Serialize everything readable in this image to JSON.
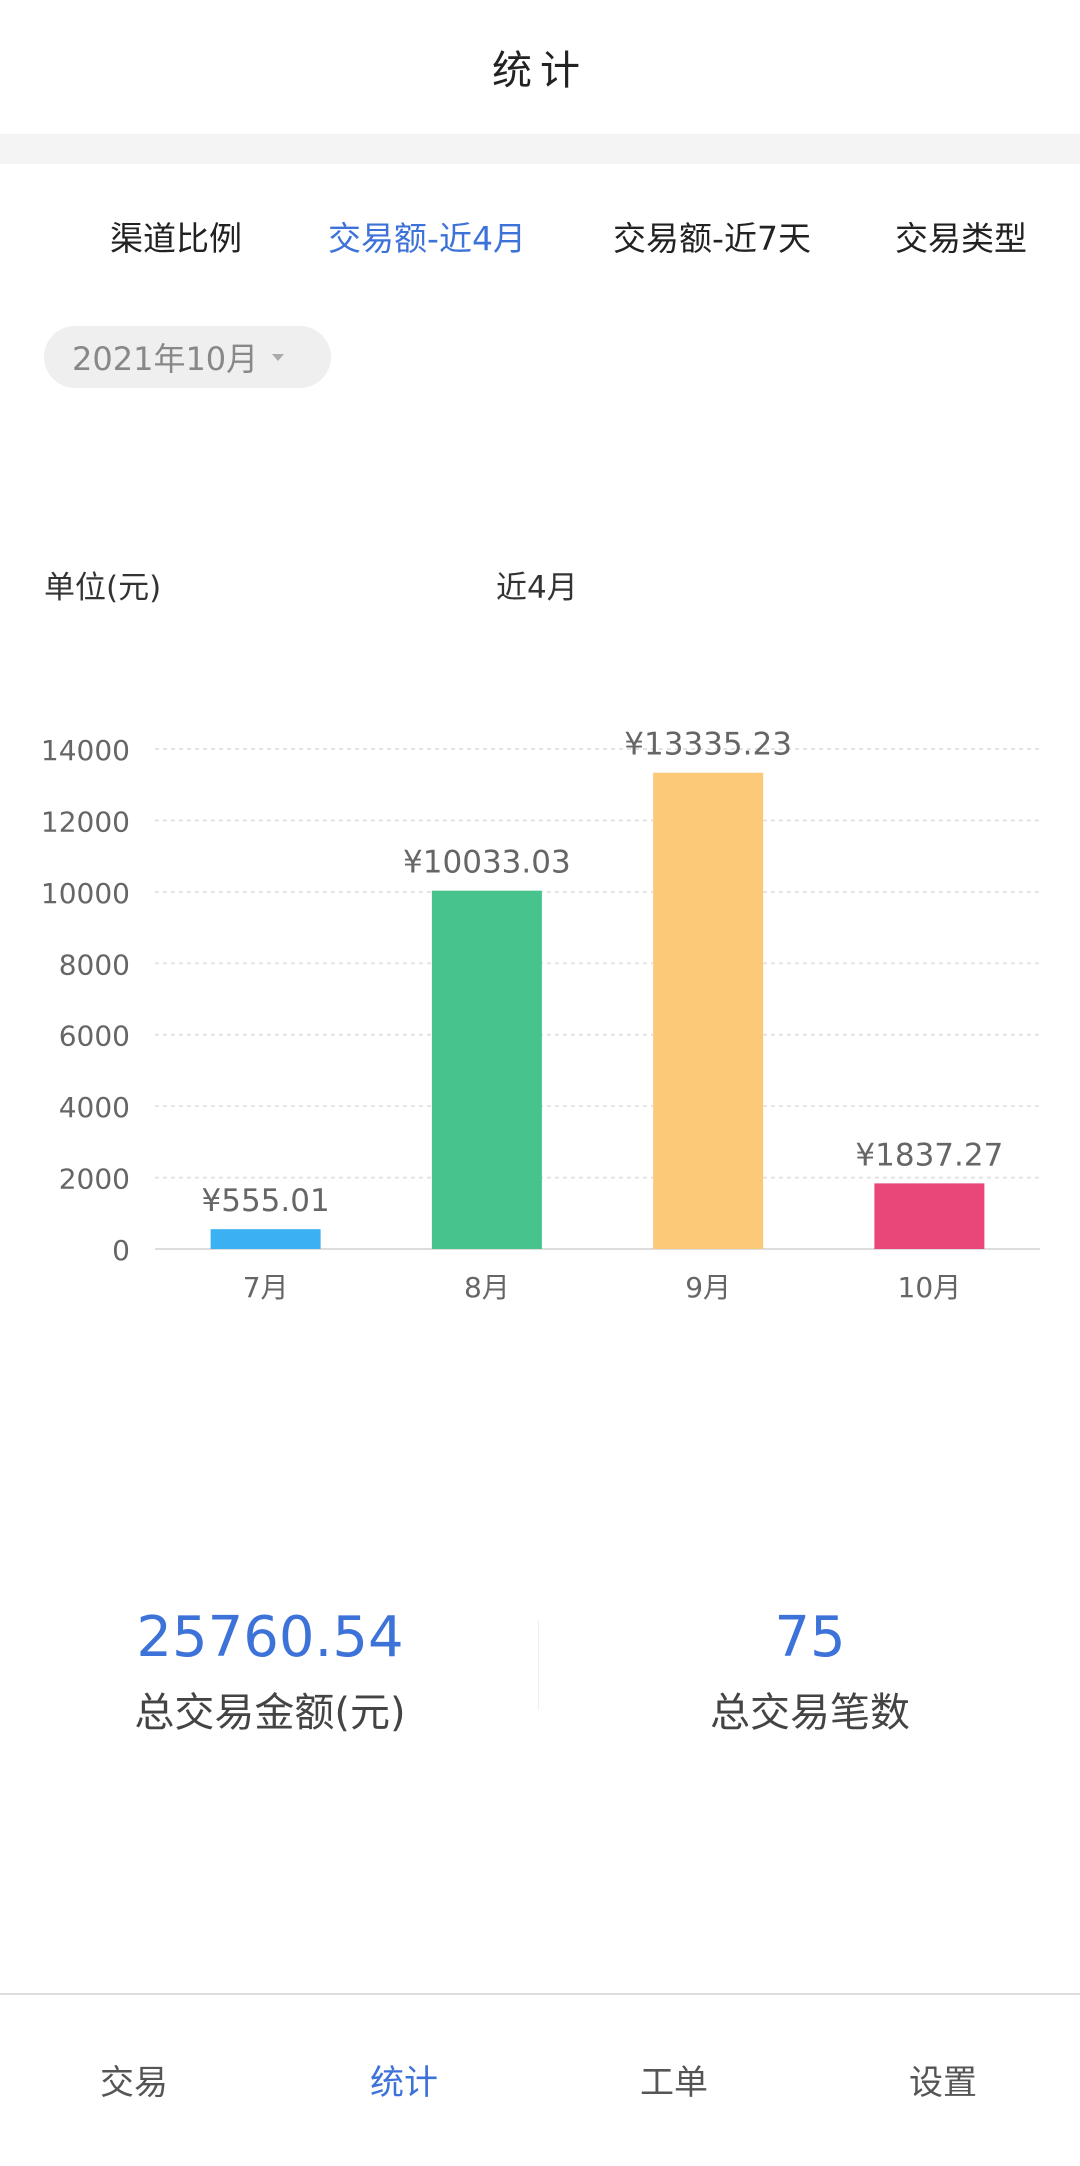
{
  "header": {
    "title": "统计"
  },
  "tabs": [
    {
      "label": "渠道比例"
    },
    {
      "label": "交易额-近4月",
      "active": true
    },
    {
      "label": "交易额-近7天"
    },
    {
      "label": "交易类型"
    }
  ],
  "date_select": {
    "value": "2021年10月"
  },
  "chart_header": {
    "unit": "单位(元)",
    "title": "近4月"
  },
  "chart_data": {
    "type": "bar",
    "title": "近4月",
    "ylabel": "单位(元)",
    "categories": [
      "7月",
      "8月",
      "9月",
      "10月"
    ],
    "values": [
      555.01,
      10033.03,
      13335.23,
      1837.27
    ],
    "data_labels": [
      "¥555.01",
      "¥10033.03",
      "¥13335.23",
      "¥1837.27"
    ],
    "colors": [
      "#3bb1f3",
      "#47c48d",
      "#fbc977",
      "#e9467a"
    ],
    "ylim": [
      0,
      14000
    ],
    "yticks": [
      "0",
      "2000",
      "4000",
      "6000",
      "8000",
      "10000",
      "12000",
      "14000"
    ],
    "grid": true
  },
  "summary": {
    "total_amount": "25760.54",
    "total_amount_label": "总交易金额(元)",
    "total_count": "75",
    "total_count_label": "总交易笔数"
  },
  "nav": [
    {
      "label": "交易"
    },
    {
      "label": "统计",
      "active": true
    },
    {
      "label": "工单"
    },
    {
      "label": "设置"
    }
  ],
  "accent": "#3d72d8"
}
